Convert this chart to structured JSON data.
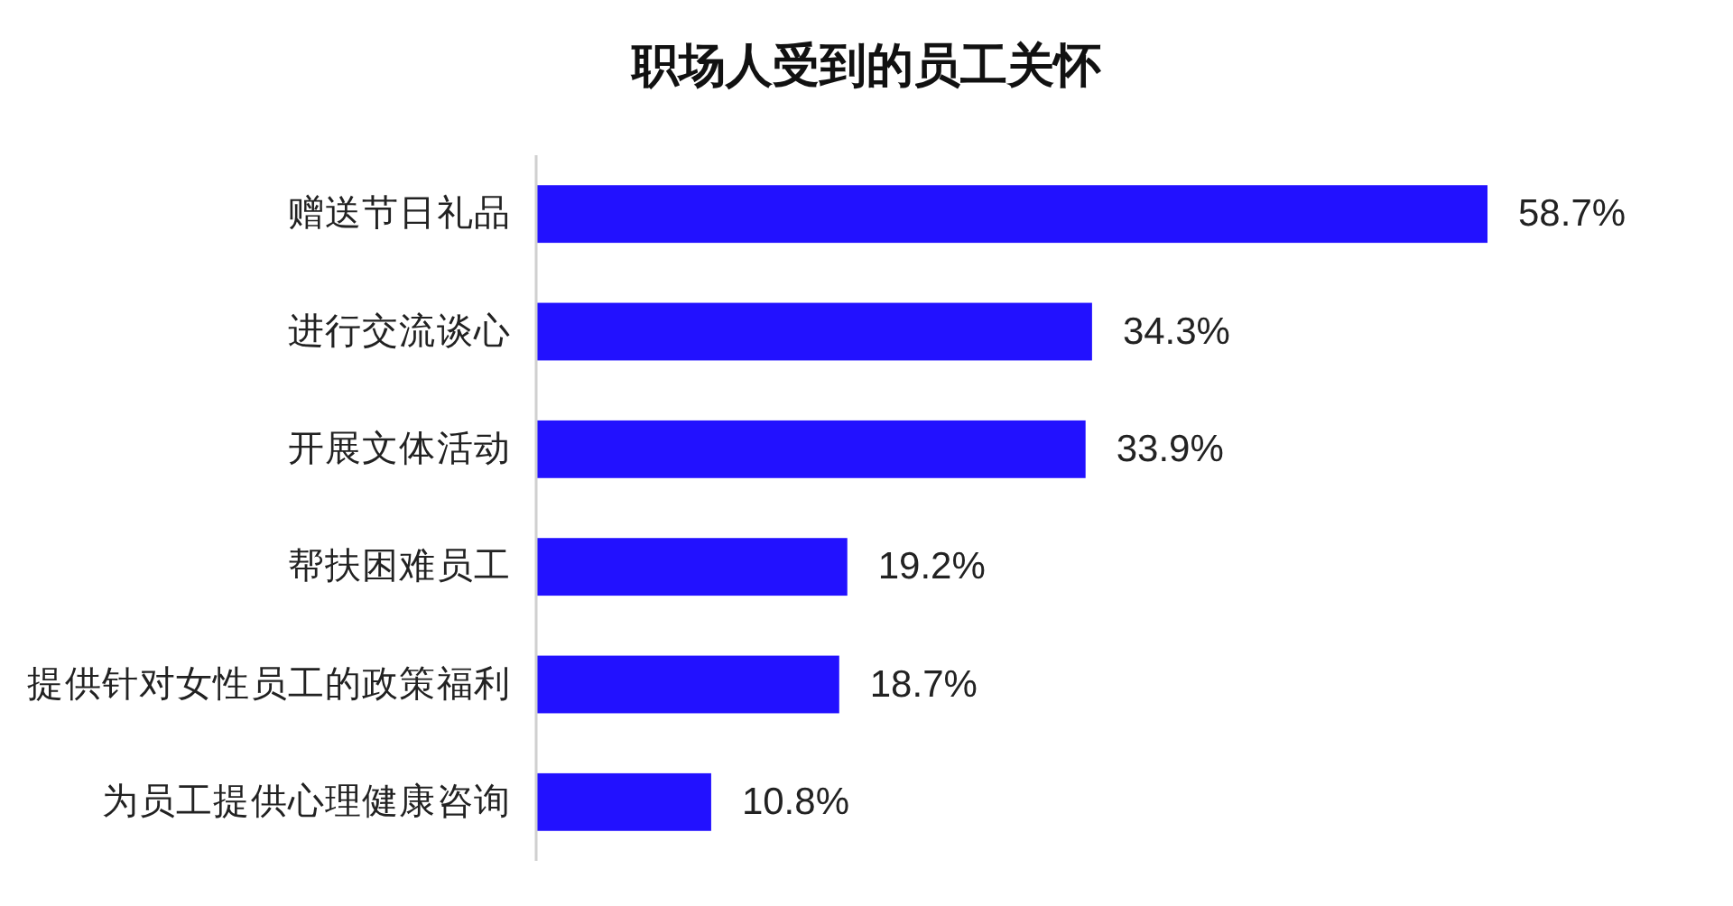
{
  "chart_data": {
    "type": "bar",
    "orientation": "horizontal",
    "title": "职场人受到的员工关怀",
    "categories": [
      "赠送节日礼品",
      "进行交流谈心",
      "开展文体活动",
      "帮扶困难员工",
      "提供针对女性员工的政策福利",
      "为员工提供心理健康咨询"
    ],
    "values": [
      58.7,
      34.3,
      33.9,
      19.2,
      18.7,
      10.8
    ],
    "value_labels": [
      "58.7%",
      "34.3%",
      "33.9%",
      "19.2%",
      "18.7%",
      "10.8%"
    ],
    "color": "#2211ff"
  }
}
